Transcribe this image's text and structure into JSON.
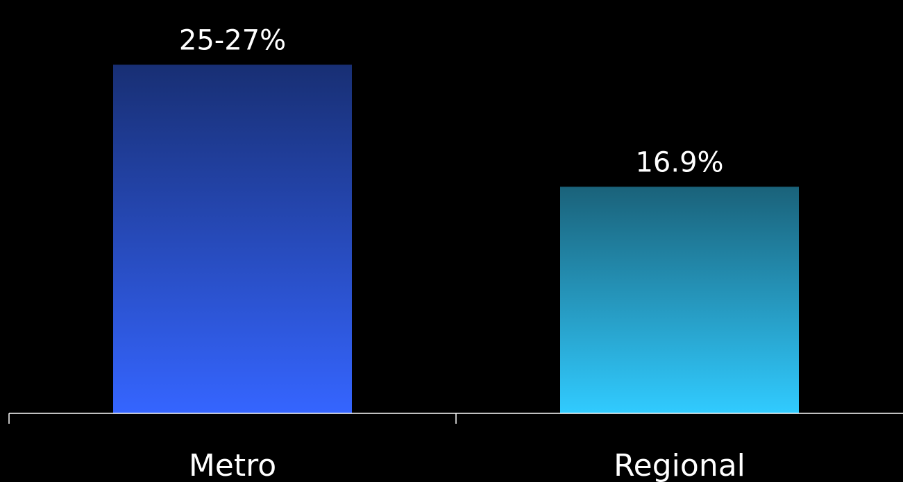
{
  "chart_data": {
    "type": "bar",
    "categories": [
      "Metro",
      "Regional"
    ],
    "values": [
      26,
      16.9
    ],
    "data_labels": [
      "25-27%",
      "16.9%"
    ],
    "ylim": [
      0,
      27
    ],
    "grid": false,
    "legend": "none",
    "colors": [
      {
        "top": "#182F74",
        "bottom": "#3565FF"
      },
      {
        "top": "#1A627A",
        "bottom": "#31CBFF"
      }
    ],
    "axis_color": "#FFFFFF",
    "background": "#000000",
    "text_color": "#FFFFFF"
  }
}
